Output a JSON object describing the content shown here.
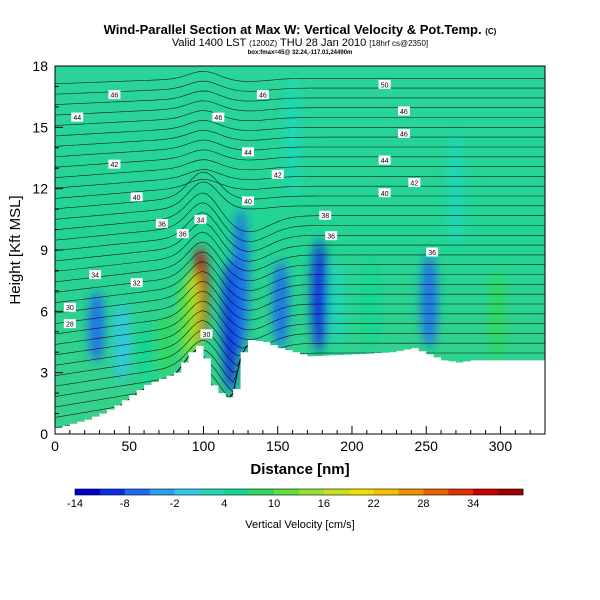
{
  "title_main": "Wind-Parallel Section at Max W: Vertical Velocity & Pot.Temp.",
  "title_main_suffix": "(C)",
  "title_valid": "Valid 1400 LST",
  "title_valid_note": "(1200Z)",
  "title_date": "THU 28 Jan 2010",
  "title_init": "[18hrf cs@2350]",
  "title_box": "box:fmax=45@ 32.24,-117.01,24490m",
  "chart_data": {
    "type": "contour-section",
    "xlabel": "Distance [nm]",
    "ylabel": "Height [Kft MSL]",
    "xlim": [
      0,
      330
    ],
    "ylim": [
      0,
      18
    ],
    "xticks": [
      0,
      50,
      100,
      150,
      200,
      250,
      300
    ],
    "yticks": [
      0,
      3,
      6,
      9,
      12,
      15,
      18
    ],
    "colorbar_label": "Vertical Velocity [cm/s]",
    "colorbar_ticks": [
      -14,
      -8,
      -2,
      4,
      10,
      16,
      22,
      28,
      34
    ],
    "colorbar_range": [
      -14,
      40
    ],
    "colorbar_colors": [
      "#0000c8",
      "#0a2ee6",
      "#1a6cf0",
      "#28a0f0",
      "#30c8e8",
      "#20d8b8",
      "#10d890",
      "#30d860",
      "#60e040",
      "#98e030",
      "#c8e020",
      "#f0e000",
      "#f8c000",
      "#f09000",
      "#e86000",
      "#e03000",
      "#c80000",
      "#a00000"
    ],
    "terrain_height_profile": {
      "x": [
        0,
        10,
        20,
        30,
        40,
        60,
        80,
        85,
        90,
        98,
        103,
        108,
        112,
        116,
        120,
        125,
        130,
        140,
        150,
        160,
        170,
        200,
        225,
        240,
        260,
        270,
        280,
        290,
        300,
        310,
        330
      ],
      "height": [
        0.3,
        0.5,
        0.7,
        1.0,
        1.4,
        2.4,
        3.0,
        3.5,
        4.0,
        4.5,
        2.5,
        2.2,
        1.8,
        1.8,
        2.2,
        4.0,
        4.6,
        4.5,
        4.2,
        4.0,
        3.8,
        3.9,
        4.0,
        4.2,
        3.6,
        3.5,
        3.6,
        3.6,
        3.6,
        3.6,
        3.6
      ]
    },
    "vertical_velocity_cells": [
      {
        "x": 98,
        "zmin": 4.5,
        "zmax": 9.2,
        "value": 36
      },
      {
        "x": 93,
        "zmin": 4.0,
        "zmax": 8.0,
        "value": 16
      },
      {
        "x": 88,
        "zmin": 3.5,
        "zmax": 7.5,
        "value": 10
      },
      {
        "x": 118,
        "zmin": 2.0,
        "zmax": 8.5,
        "value": -10
      },
      {
        "x": 125,
        "zmin": 4.0,
        "zmax": 11.0,
        "value": -8
      },
      {
        "x": 152,
        "zmin": 4.2,
        "zmax": 8.5,
        "value": -6
      },
      {
        "x": 178,
        "zmin": 4.0,
        "zmax": 9.5,
        "value": -10
      },
      {
        "x": 190,
        "zmin": 4.2,
        "zmax": 8.5,
        "value": 2
      },
      {
        "x": 212,
        "zmin": 4.2,
        "zmax": 8.5,
        "value": 6
      },
      {
        "x": 252,
        "zmin": 4.2,
        "zmax": 8.8,
        "value": -8
      },
      {
        "x": 298,
        "zmin": 3.6,
        "zmax": 8.0,
        "value": 8
      },
      {
        "x": 28,
        "zmin": 3.5,
        "zmax": 7.0,
        "value": -6
      },
      {
        "x": 45,
        "zmin": 2.5,
        "zmax": 6.5,
        "value": -2
      },
      {
        "x": 60,
        "zmin": 2.4,
        "zmax": 5.5,
        "value": 6
      },
      {
        "x": 75,
        "zmin": 2.8,
        "zmax": 6.0,
        "value": 8
      },
      {
        "x": 270,
        "zmin": 9.0,
        "zmax": 15.0,
        "value": 2
      },
      {
        "x": 160,
        "zmin": 11.5,
        "zmax": 17.5,
        "value": 1
      }
    ],
    "theta_contour_labels": [
      {
        "text": "50",
        "x": 222,
        "z": 17.1
      },
      {
        "text": "46",
        "x": 40,
        "z": 16.6
      },
      {
        "text": "46",
        "x": 140,
        "z": 16.6
      },
      {
        "text": "44",
        "x": 15,
        "z": 15.5
      },
      {
        "text": "46",
        "x": 110,
        "z": 15.5
      },
      {
        "text": "46",
        "x": 235,
        "z": 15.8
      },
      {
        "text": "46",
        "x": 235,
        "z": 14.7
      },
      {
        "text": "42",
        "x": 40,
        "z": 13.2
      },
      {
        "text": "44",
        "x": 130,
        "z": 13.8
      },
      {
        "text": "44",
        "x": 222,
        "z": 13.4
      },
      {
        "text": "42",
        "x": 150,
        "z": 12.7
      },
      {
        "text": "42",
        "x": 242,
        "z": 12.3
      },
      {
        "text": "40",
        "x": 55,
        "z": 11.6
      },
      {
        "text": "40",
        "x": 130,
        "z": 11.4
      },
      {
        "text": "40",
        "x": 222,
        "z": 11.8
      },
      {
        "text": "38",
        "x": 182,
        "z": 10.7
      },
      {
        "text": "36",
        "x": 72,
        "z": 10.3
      },
      {
        "text": "34",
        "x": 98,
        "z": 10.5
      },
      {
        "text": "36",
        "x": 86,
        "z": 9.8
      },
      {
        "text": "36",
        "x": 186,
        "z": 9.7
      },
      {
        "text": "36",
        "x": 254,
        "z": 8.9
      },
      {
        "text": "34",
        "x": 27,
        "z": 7.8
      },
      {
        "text": "32",
        "x": 55,
        "z": 7.4
      },
      {
        "text": "30",
        "x": 10,
        "z": 6.2
      },
      {
        "text": "28",
        "x": 10,
        "z": 5.4
      },
      {
        "text": "30",
        "x": 102,
        "z": 4.9
      }
    ],
    "theta_contour_levels": [
      28,
      30,
      32,
      34,
      36,
      38,
      40,
      42,
      44,
      46,
      48,
      50
    ]
  }
}
